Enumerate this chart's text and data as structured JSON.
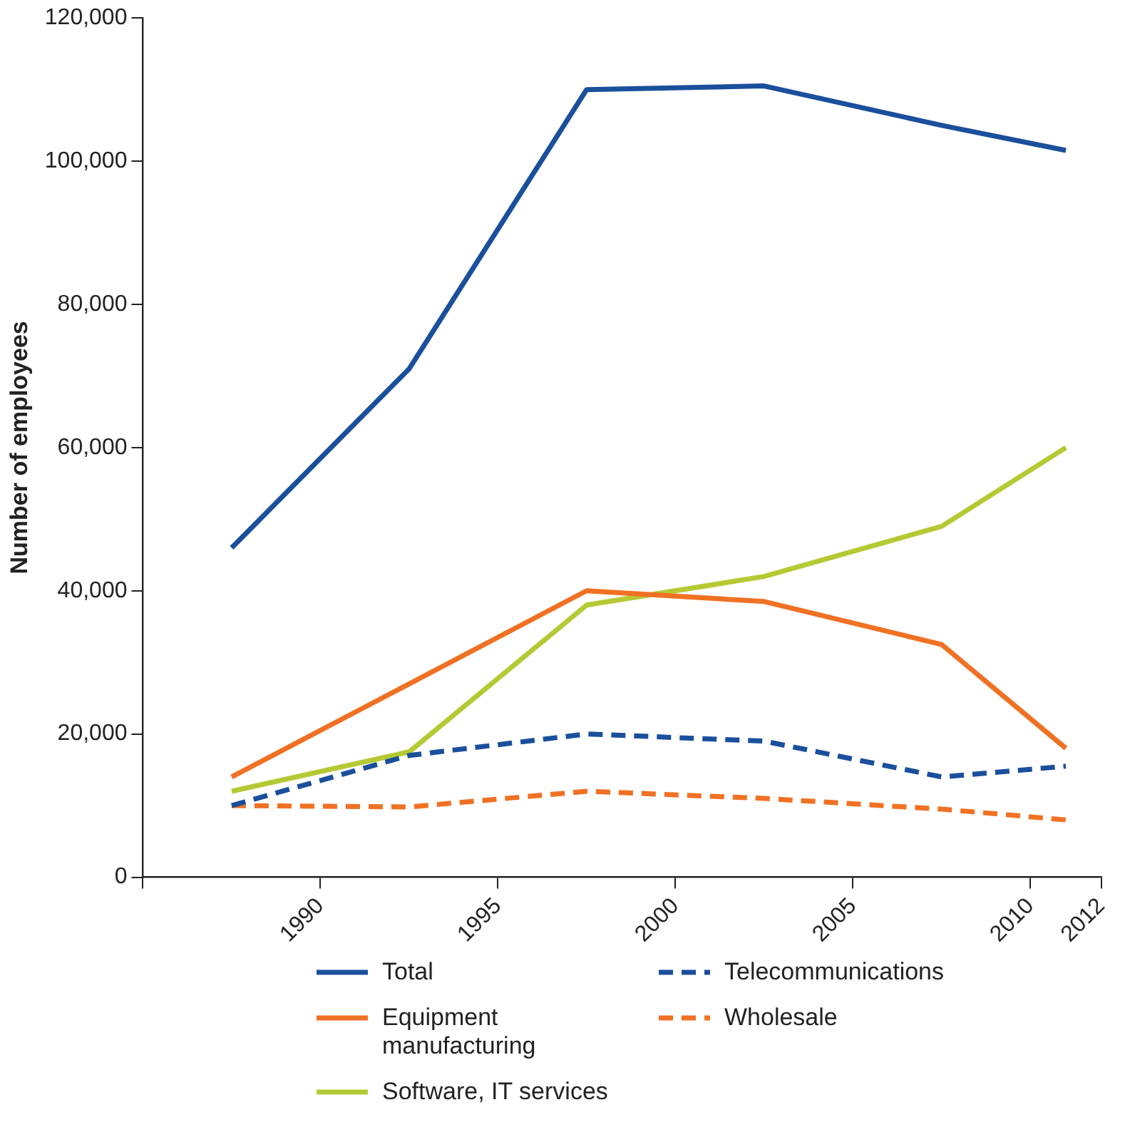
{
  "chart_data": {
    "type": "line",
    "ylabel": "Number of employees",
    "x": [
      1987.5,
      1992.5,
      1997.5,
      2002.5,
      2007.5,
      2011
    ],
    "xlim": [
      1985,
      2012
    ],
    "xticks": [
      {
        "value": 1985,
        "label": null
      },
      {
        "value": 1990,
        "label": "1990"
      },
      {
        "value": 1995,
        "label": "1995"
      },
      {
        "value": 2000,
        "label": "2000"
      },
      {
        "value": 2005,
        "label": "2005"
      },
      {
        "value": 2010,
        "label": "2010"
      },
      {
        "value": 2012,
        "label": "2012"
      }
    ],
    "ylim": [
      0,
      120000
    ],
    "yticks": [
      0,
      {
        "value": 20000,
        "label": "20,000"
      },
      {
        "value": 40000,
        "label": "40,000"
      },
      {
        "value": 60000,
        "label": "60,000"
      },
      {
        "value": 80000,
        "label": "80,000"
      },
      {
        "value": 100000,
        "label": "100,000"
      },
      {
        "value": 120000,
        "label": "120,000"
      }
    ],
    "grid": false,
    "legend": "bottom",
    "marker": "none",
    "series": [
      {
        "name": "Total",
        "color": "#1a4f9c",
        "line_style": "solid",
        "values": [
          46000,
          71000,
          110000,
          110500,
          105000,
          101500
        ]
      },
      {
        "name": "Telecommunications",
        "color": "#1a4f9c",
        "line_style": "dashed",
        "values": [
          10000,
          17000,
          20000,
          19000,
          14000,
          15500
        ]
      },
      {
        "name": "Equipment manufacturing",
        "color": "#f07123",
        "line_style": "solid",
        "values": [
          14000,
          27000,
          40000,
          38500,
          32500,
          18000
        ]
      },
      {
        "name": "Wholesale",
        "color": "#f07123",
        "line_style": "dashed",
        "values": [
          10000,
          9800,
          12000,
          11000,
          9500,
          8000
        ]
      },
      {
        "name": "Software, IT services",
        "color": "#b5c934",
        "line_style": "solid",
        "values": [
          12000,
          17500,
          38000,
          42000,
          49000,
          60000
        ]
      }
    ]
  }
}
